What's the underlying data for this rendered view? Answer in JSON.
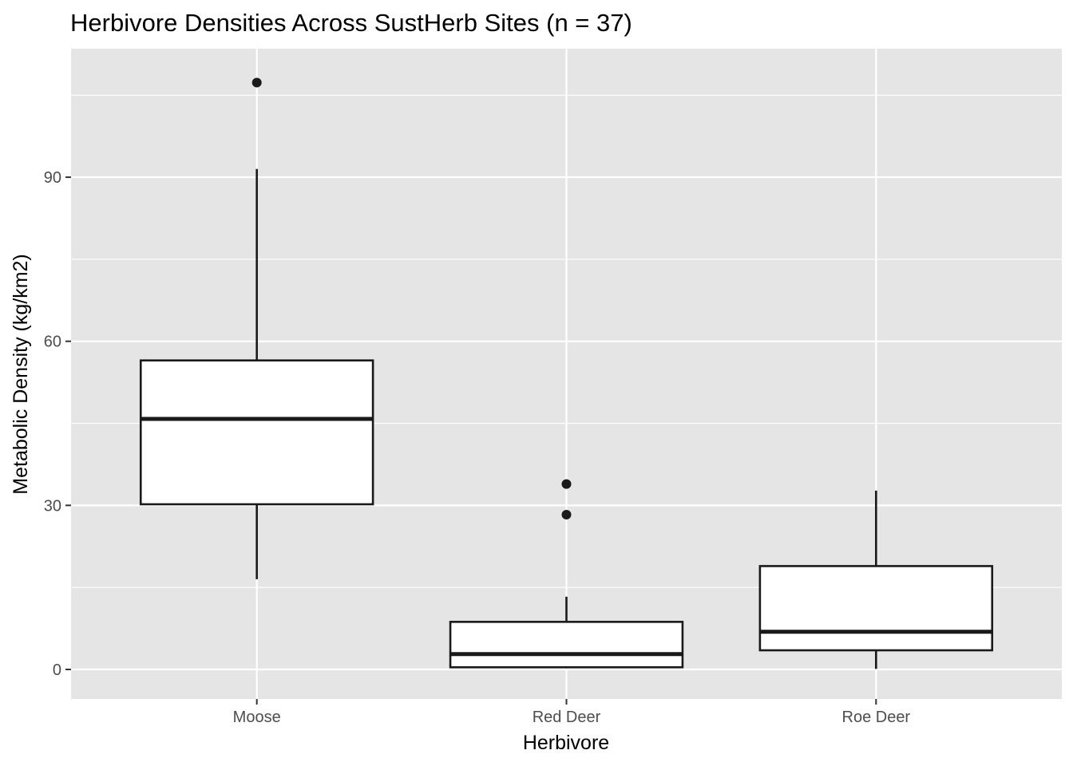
{
  "chart_data": {
    "type": "boxplot",
    "title": "Herbivore Densities Across SustHerb Sites (n = 37)",
    "xlabel": "Herbivore",
    "ylabel": "Metabolic Density (kg/km2)",
    "categories": [
      "Moose",
      "Red Deer",
      "Roe Deer"
    ],
    "ylim": [
      -5.4,
      113.5
    ],
    "yticks": [
      0,
      30,
      60,
      90
    ],
    "ytick_labels": [
      "0",
      "30",
      "60",
      "90"
    ],
    "grid": true,
    "legend": "none",
    "colors": {
      "panel": "#e5e5e5",
      "grid": "#ffffff",
      "box_fill": "#ffffff",
      "box_stroke": "#1a1a1a",
      "tick_text": "#4d4d4d"
    },
    "boxes": [
      {
        "category": "Moose",
        "whisker_low": 16.5,
        "q1": 30.2,
        "median": 45.8,
        "q3": 56.5,
        "whisker_high": 91.5,
        "outliers": [
          107.3
        ]
      },
      {
        "category": "Red Deer",
        "whisker_low": 0.2,
        "q1": 0.4,
        "median": 2.8,
        "q3": 8.7,
        "whisker_high": 13.3,
        "outliers": [
          33.9,
          28.3
        ]
      },
      {
        "category": "Roe Deer",
        "whisker_low": 0.1,
        "q1": 3.5,
        "median": 6.9,
        "q3": 18.9,
        "whisker_high": 32.7,
        "outliers": []
      }
    ]
  }
}
